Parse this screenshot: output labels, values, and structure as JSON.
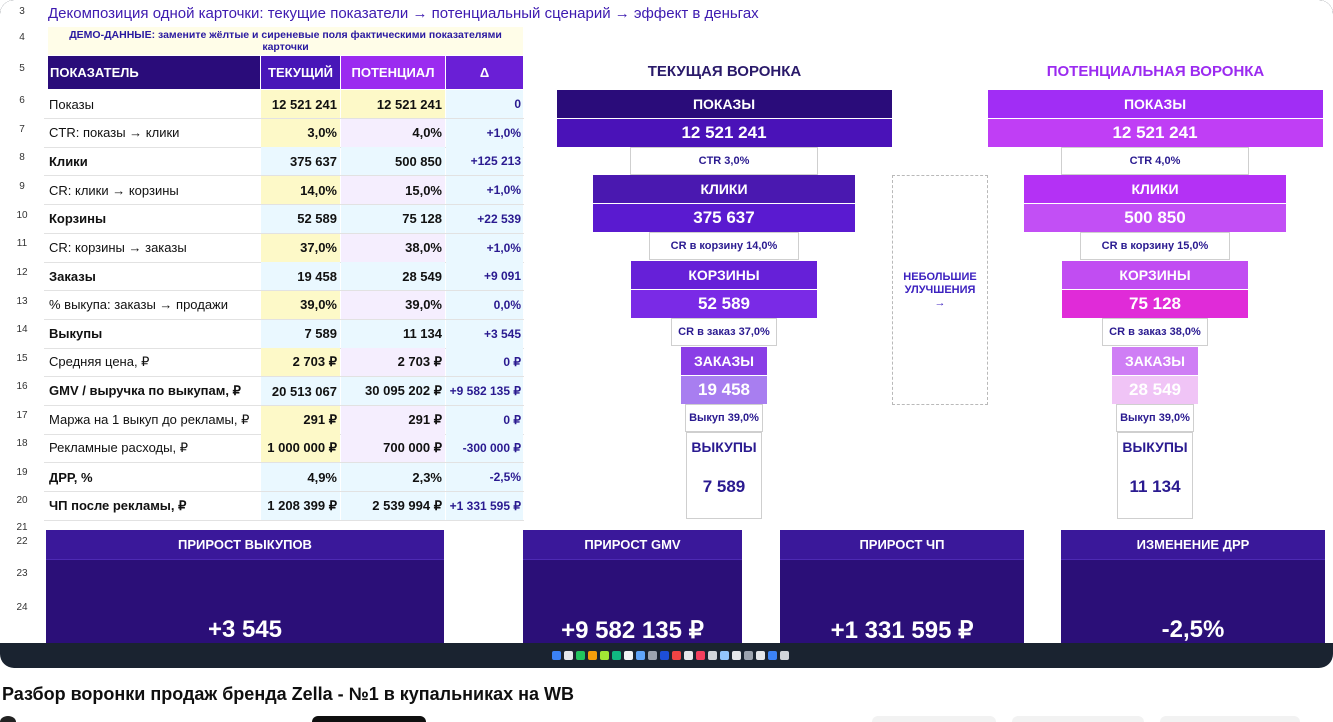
{
  "sheet": {
    "title": "Декомпозиция одной карточки: текущие показатели → потенциальный сценарий → эффект в деньгах",
    "demo_note": "ДЕМО-ДАННЫЕ: замените жёлтые и сиреневые поля фактическими показателями карточки",
    "row_numbers": [
      "3",
      "4",
      "5",
      "6",
      "7",
      "8",
      "9",
      "10",
      "11",
      "12",
      "13",
      "14",
      "15",
      "16",
      "17",
      "18",
      "19",
      "20",
      "21",
      "22",
      "23",
      "24"
    ],
    "headers": {
      "metric": "ПОКАЗАТЕЛЬ",
      "current": "ТЕКУЩИЙ",
      "potential": "ПОТЕНЦИАЛ",
      "delta": "Δ"
    },
    "rows": [
      {
        "label": "Показы",
        "current": "12 521 241",
        "potential": "12 521 241",
        "delta": "0",
        "bold": false
      },
      {
        "label": "CTR: показы → клики",
        "current": "3,0%",
        "potential": "4,0%",
        "delta": "+1,0%",
        "bold": false
      },
      {
        "label": "Клики",
        "current": "375 637",
        "potential": "500 850",
        "delta": "+125 213",
        "bold": true
      },
      {
        "label": "CR: клики → корзины",
        "current": "14,0%",
        "potential": "15,0%",
        "delta": "+1,0%",
        "bold": false
      },
      {
        "label": "Корзины",
        "current": "52 589",
        "potential": "75 128",
        "delta": "+22 539",
        "bold": true
      },
      {
        "label": "CR: корзины → заказы",
        "current": "37,0%",
        "potential": "38,0%",
        "delta": "+1,0%",
        "bold": false
      },
      {
        "label": "Заказы",
        "current": "19 458",
        "potential": "28 549",
        "delta": "+9 091",
        "bold": true
      },
      {
        "label": "% выкупа: заказы → продажи",
        "current": "39,0%",
        "potential": "39,0%",
        "delta": "0,0%",
        "bold": false
      },
      {
        "label": "Выкупы",
        "current": "7 589",
        "potential": "11 134",
        "delta": "+3 545",
        "bold": true
      },
      {
        "label": "Средняя цена, ₽",
        "current": "2 703 ₽",
        "potential": "2 703 ₽",
        "delta": "0 ₽",
        "bold": false
      },
      {
        "label": "GMV / выручка по выкупам, ₽",
        "current": "20 513 067",
        "potential": "30 095 202 ₽",
        "delta": "+9 582 135 ₽",
        "bold": true
      },
      {
        "label": "Маржа на 1 выкуп до рекламы, ₽",
        "current": "291 ₽",
        "potential": "291 ₽",
        "delta": "0 ₽",
        "bold": false
      },
      {
        "label": "Рекламные расходы, ₽",
        "current": "1 000 000 ₽",
        "potential": "700 000 ₽",
        "delta": "-300 000 ₽",
        "bold": false
      },
      {
        "label": "ДРР, %",
        "current": "4,9%",
        "potential": "2,3%",
        "delta": "-2,5%",
        "bold": true
      },
      {
        "label": "ЧП после рекламы, ₽",
        "current": "1 208 399 ₽",
        "potential": "2 539 994 ₽",
        "delta": "+1 331 595 ₽",
        "bold": true
      }
    ],
    "current_funnel": {
      "title": "ТЕКУЩАЯ ВОРОНКА",
      "stages": [
        {
          "label": "ПОКАЗЫ",
          "value": "12 521 241"
        },
        {
          "label": "КЛИКИ",
          "value": "375 637"
        },
        {
          "label": "КОРЗИНЫ",
          "value": "52 589"
        },
        {
          "label": "ЗАКАЗЫ",
          "value": "19 458"
        },
        {
          "label": "ВЫКУПЫ",
          "value": "7 589"
        }
      ],
      "conversions": [
        "CTR 3,0%",
        "CR в корзину 14,0%",
        "CR в заказ 37,0%",
        "Выкуп 39,0%"
      ]
    },
    "middle_note": {
      "line1": "НЕБОЛЬШИЕ",
      "line2": "УЛУЧШЕНИЯ",
      "arrow": "→"
    },
    "potential_funnel": {
      "title": "ПОТЕНЦИАЛЬНАЯ ВОРОНКА",
      "stages": [
        {
          "label": "ПОКАЗЫ",
          "value": "12 521 241"
        },
        {
          "label": "КЛИКИ",
          "value": "500 850"
        },
        {
          "label": "КОРЗИНЫ",
          "value": "75 128"
        },
        {
          "label": "ЗАКАЗЫ",
          "value": "28 549"
        },
        {
          "label": "ВЫКУПЫ",
          "value": "11 134"
        }
      ],
      "conversions": [
        "CTR 4,0%",
        "CR в корзину 15,0%",
        "CR в заказ 38,0%",
        "Выкуп 39,0%"
      ]
    },
    "kpis": [
      {
        "label": "ПРИРОСТ ВЫКУПОВ",
        "value": "+3 545"
      },
      {
        "label": "ПРИРОСТ GMV",
        "value": "+9 582 135 ₽"
      },
      {
        "label": "ПРИРОСТ ЧП",
        "value": "+1 331 595 ₽"
      },
      {
        "label": "ИЗМЕНЕНИЕ ДРР",
        "value": "-2,5%"
      }
    ]
  },
  "video": {
    "title": "Разбор воронки продаж бренда Zella - №1 в купальниках на WB"
  },
  "colors": {
    "header_dark": "#2a0c7a",
    "accent_violet": "#9b2bf0",
    "cell_yellow": "#fdf9c8",
    "cell_lilac": "#f5eefe"
  }
}
